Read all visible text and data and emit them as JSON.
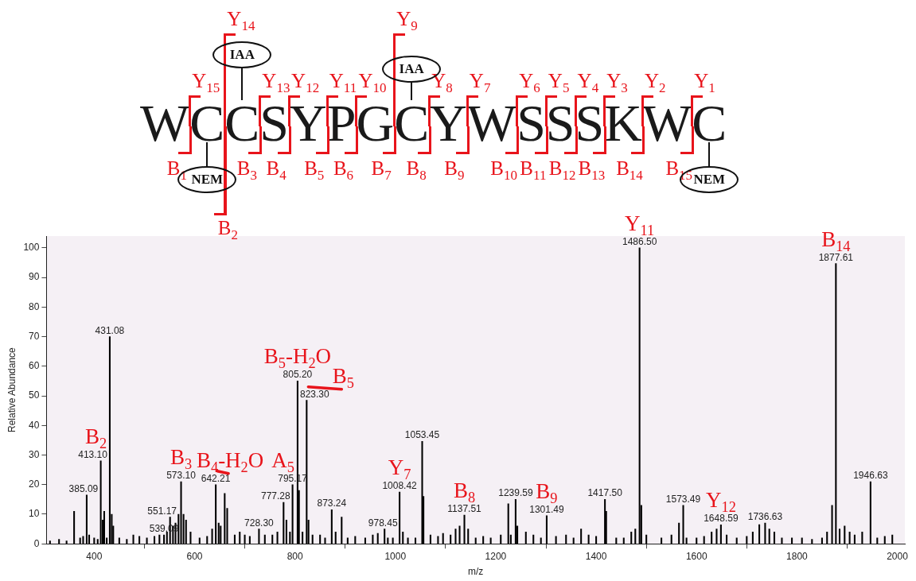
{
  "chart_data": {
    "type": "bar",
    "xlabel": "m/z",
    "ylabel": "Relative Abundance",
    "color": "#000000",
    "grid": false,
    "legend": false,
    "xlim": [
      305,
      2015
    ],
    "ylim": [
      0,
      104
    ],
    "xticks": [
      400,
      600,
      800,
      1000,
      1200,
      1400,
      1600,
      1800,
      2000
    ],
    "yticks": [
      0,
      10,
      20,
      30,
      40,
      50,
      60,
      70,
      80,
      90,
      100
    ],
    "x": [
      312,
      330,
      345,
      360,
      372,
      378,
      385.09,
      390,
      400,
      407,
      413.1,
      417,
      420,
      425,
      431.08,
      435,
      438,
      450,
      465,
      478,
      490,
      505,
      520,
      530,
      539.09,
      545,
      551.17,
      557,
      562,
      568,
      573.1,
      578,
      583,
      592,
      610,
      625,
      635,
      642.21,
      648,
      652,
      660,
      665,
      680,
      690,
      700,
      710,
      728.3,
      740,
      755,
      765,
      777.28,
      783,
      790,
      795.17,
      805.2,
      808,
      815,
      823.3,
      827,
      835,
      850,
      860,
      873.24,
      881,
      893,
      905,
      920,
      940,
      955,
      965,
      978.45,
      985,
      995,
      1008.42,
      1015,
      1025,
      1040,
      1053.45,
      1056,
      1070,
      1085,
      1095,
      1110,
      1120,
      1128,
      1137.51,
      1145,
      1160,
      1175,
      1190,
      1210,
      1225,
      1230,
      1239.59,
      1243,
      1260,
      1275,
      1290,
      1301.49,
      1320,
      1340,
      1355,
      1370,
      1385,
      1400,
      1417.5,
      1420,
      1440,
      1455,
      1470,
      1478,
      1486.5,
      1490,
      1500,
      1530,
      1550,
      1565,
      1573.49,
      1580,
      1600,
      1615,
      1630,
      1640,
      1648.59,
      1660,
      1680,
      1700,
      1712,
      1725,
      1736.63,
      1745,
      1755,
      1770,
      1790,
      1810,
      1830,
      1850,
      1860,
      1870,
      1877.61,
      1885,
      1895,
      1905,
      1915,
      1930,
      1946.63,
      1960,
      1975,
      1990
    ],
    "values": [
      1,
      1.5,
      1,
      11,
      2,
      2.5,
      16.5,
      3,
      2,
      1.5,
      28,
      8,
      11,
      2,
      70,
      10,
      6,
      2,
      1.5,
      3,
      2.5,
      2,
      2.5,
      3,
      3,
      4,
      9,
      6,
      7,
      10,
      21,
      10,
      8,
      4,
      2,
      2.5,
      5,
      20,
      7,
      6,
      17,
      12,
      3,
      4,
      3,
      2.5,
      5,
      3,
      3,
      4,
      14,
      8,
      4,
      20,
      55,
      18,
      4,
      48.5,
      8,
      3,
      3,
      2,
      11.5,
      4,
      9,
      2,
      2.5,
      2,
      3,
      3.5,
      5,
      2,
      2,
      17.5,
      4,
      2,
      2,
      34.6,
      16,
      3,
      2.5,
      3.5,
      3,
      5,
      6,
      9.7,
      5,
      2,
      2.5,
      2,
      3,
      13.5,
      3,
      15,
      6,
      4,
      3,
      2,
      9.5,
      2.5,
      3,
      2,
      5,
      3,
      2.5,
      15,
      11,
      2,
      2,
      4,
      5,
      100,
      13,
      3,
      2,
      3,
      7,
      13,
      2,
      2,
      2.5,
      4,
      5,
      6.4,
      3,
      2,
      2.5,
      4,
      6.5,
      7,
      5,
      4,
      2,
      2,
      2,
      1.5,
      2,
      4,
      13,
      94.7,
      5,
      6,
      4,
      3,
      4,
      21,
      2,
      2.5,
      3
    ],
    "annotations": [
      "WCCSYPGCYWSSSKWC",
      "Y$_{15}$",
      "Y$_{14}$",
      "Y$_{13}$",
      "Y$_{12}$",
      "Y$_{11}$",
      "Y$_{10}$",
      "Y$_{9}$",
      "Y$_{8}$",
      "Y$_{7}$",
      "Y$_{6}$",
      "Y$_{5}$",
      "Y$_{4}$",
      "Y$_{3}$",
      "Y$_{2}$",
      "Y$_{1}$",
      "B$_{1}$",
      "B$_{2}$",
      "B$_{3}$",
      "B$_{4}$",
      "B$_{5}$",
      "B$_{6}$",
      "B$_{7}$",
      "B$_{8}$",
      "B$_{9}$",
      "B$_{10}$",
      "B$_{11}$",
      "B$_{12}$",
      "B$_{13}$",
      "B$_{14}$",
      "B$_{15}$",
      "IAA",
      "IAA",
      "NEM",
      "NEM",
      {
        "text": "385.09",
        "x": 385.09,
        "y": 16.5
      },
      {
        "text": "413.10",
        "x": 413.1,
        "y": 28
      },
      {
        "text": "B$_{2}$",
        "x": 413.1,
        "y": 28
      },
      {
        "text": "431.08",
        "x": 431.08,
        "y": 70
      },
      {
        "text": "539.09",
        "x": 539.09,
        "y": 3
      },
      {
        "text": "551.17",
        "x": 551.17,
        "y": 9
      },
      {
        "text": "573.10",
        "x": 573.1,
        "y": 21
      },
      {
        "text": "B$_{3}$",
        "x": 573.1,
        "y": 21
      },
      {
        "text": "642.21",
        "x": 642.21,
        "y": 20
      },
      {
        "text": "B$_{4}$-H$_{2}$O",
        "x": 642.21,
        "y": 20
      },
      {
        "text": "728.30",
        "x": 728.3,
        "y": 5
      },
      {
        "text": "777.28",
        "x": 777.28,
        "y": 14
      },
      {
        "text": "795.17",
        "x": 795.17,
        "y": 20
      },
      {
        "text": "A$_{5}$",
        "x": 795.17,
        "y": 20
      },
      {
        "text": "805.20",
        "x": 805.2,
        "y": 55
      },
      {
        "text": "B$_{5}$-H$_{2}$O",
        "x": 805.2,
        "y": 55
      },
      {
        "text": "823.30",
        "x": 823.3,
        "y": 48.5
      },
      {
        "text": "B$_{5}$",
        "x": 823.3,
        "y": 48.5
      },
      {
        "text": "873.24",
        "x": 873.24,
        "y": 11.5
      },
      {
        "text": "978.45",
        "x": 978.45,
        "y": 5
      },
      {
        "text": "1008.42",
        "x": 1008.42,
        "y": 17.5
      },
      {
        "text": "Y$_{7}$",
        "x": 1008.42,
        "y": 17.5
      },
      {
        "text": "1053.45",
        "x": 1053.45,
        "y": 34.6
      },
      {
        "text": "1137.51",
        "x": 1137.51,
        "y": 9.7
      },
      {
        "text": "B$_{8}$",
        "x": 1137.51,
        "y": 9.7
      },
      {
        "text": "1239.59",
        "x": 1239.59,
        "y": 15
      },
      {
        "text": "1301.49",
        "x": 1301.49,
        "y": 9.5
      },
      {
        "text": "B$_{9}$",
        "x": 1301.49,
        "y": 9.5
      },
      {
        "text": "1417.50",
        "x": 1417.5,
        "y": 15
      },
      {
        "text": "1486.50",
        "x": 1486.5,
        "y": 100
      },
      {
        "text": "Y$_{11}$",
        "x": 1486.5,
        "y": 100
      },
      {
        "text": "1573.49",
        "x": 1573.49,
        "y": 13
      },
      {
        "text": "1648.59",
        "x": 1648.59,
        "y": 6.4
      },
      {
        "text": "Y$_{12}$",
        "x": 1648.59,
        "y": 6.4
      },
      {
        "text": "1736.63",
        "x": 1736.63,
        "y": 7
      },
      {
        "text": "1877.61",
        "x": 1877.61,
        "y": 94.7
      },
      {
        "text": "B$_{14}$",
        "x": 1877.61,
        "y": 94.7
      },
      {
        "text": "1946.63",
        "x": 1946.63,
        "y": 21
      }
    ]
  }
}
